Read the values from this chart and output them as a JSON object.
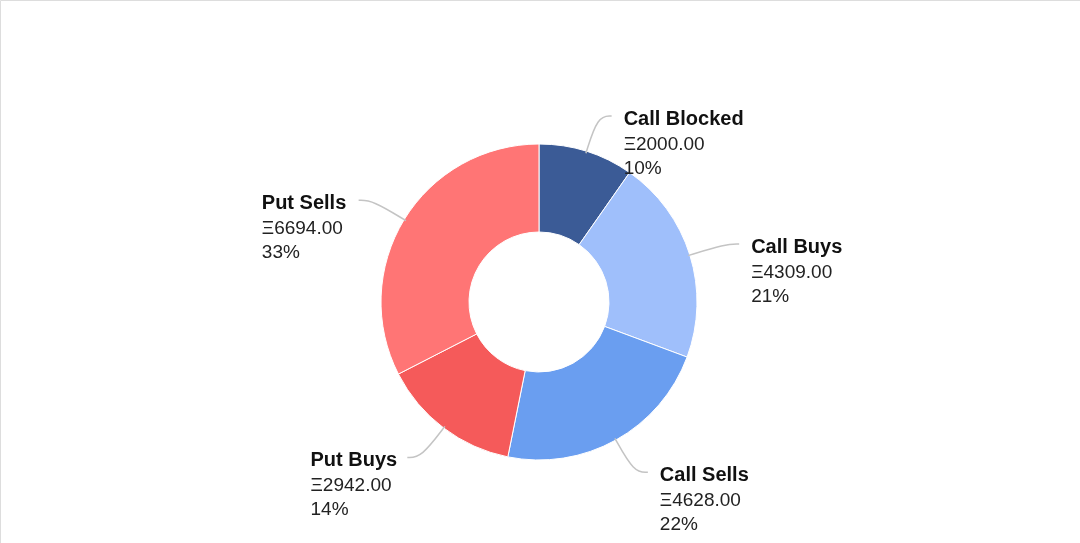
{
  "chart_data": {
    "type": "donut",
    "categories": [
      "Call Blocked",
      "Call Buys",
      "Call Sells",
      "Put Buys",
      "Put Sells"
    ],
    "values": [
      2000,
      4309,
      4628,
      2942,
      6694
    ],
    "colors": [
      "#3b5b96",
      "#9fbffb",
      "#6a9ef0",
      "#f55a5a",
      "#ff7575"
    ],
    "value_labels": [
      "Ξ2000.00\n10%",
      "Ξ4309.00\n21%",
      "Ξ4628.00\n22%",
      "Ξ2942.00\n14%",
      "Ξ6694.00\n33%"
    ]
  }
}
